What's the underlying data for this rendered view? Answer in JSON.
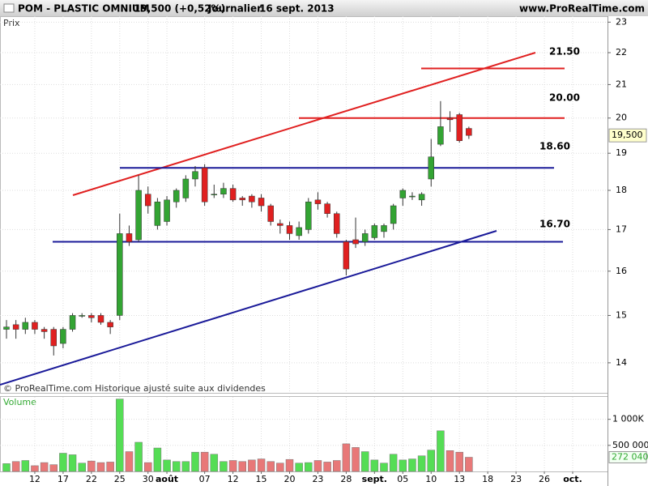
{
  "header": {
    "symbol": "POM - PLASTIC OMNIUM",
    "quote": "19,500 (+0,52%)",
    "period": "Journalier",
    "date": "16 sept. 2013",
    "site": "www.ProRealTime.com"
  },
  "chart_data": [
    {
      "type": "candlestick",
      "axis_label": "Prix",
      "footnote": "© ProRealTime.com Historique ajusté suite aux dividendes",
      "log_scale": true,
      "grid": true,
      "up_color": "#33a433",
      "down_color": "#e02020",
      "categories": [
        null,
        null,
        null,
        "12",
        null,
        null,
        "17",
        null,
        null,
        "22",
        null,
        null,
        "25",
        null,
        null,
        "30",
        null,
        "août",
        null,
        null,
        null,
        "07",
        null,
        null,
        "12",
        null,
        null,
        "15",
        null,
        null,
        "20",
        null,
        null,
        "23",
        null,
        null,
        "28",
        null,
        null,
        "sept.",
        null,
        null,
        "05",
        null,
        null,
        "10",
        null,
        null,
        "13",
        null,
        null,
        "18",
        null,
        null,
        "23",
        null,
        null,
        "26",
        null,
        null,
        "oct."
      ],
      "open": [
        14.7,
        14.8,
        14.7,
        14.85,
        14.7,
        14.7,
        14.4,
        14.7,
        15.0,
        15.0,
        15.0,
        14.85,
        15.0,
        16.9,
        16.75,
        17.9,
        17.1,
        17.2,
        17.7,
        17.8,
        18.3,
        18.6,
        17.9,
        17.9,
        18.05,
        17.8,
        17.85,
        17.8,
        17.6,
        17.15,
        17.1,
        16.85,
        17.0,
        17.75,
        17.65,
        17.4,
        16.7,
        16.75,
        16.7,
        16.8,
        16.95,
        17.15,
        17.8,
        17.85,
        17.75,
        18.3,
        19.25,
        20.0,
        20.1,
        19.7,
        null,
        null,
        null,
        null,
        null,
        null,
        null,
        null,
        null,
        null,
        null
      ],
      "high": [
        14.9,
        14.9,
        14.95,
        14.9,
        14.75,
        14.75,
        14.75,
        15.05,
        15.05,
        15.05,
        15.05,
        14.9,
        17.4,
        17.1,
        18.4,
        18.1,
        17.8,
        17.85,
        18.05,
        18.4,
        18.65,
        18.7,
        18.15,
        18.2,
        18.15,
        17.85,
        17.9,
        17.9,
        17.65,
        17.25,
        17.2,
        17.2,
        17.8,
        17.95,
        17.7,
        17.45,
        16.75,
        17.3,
        17.0,
        17.15,
        17.15,
        17.65,
        18.05,
        17.95,
        17.95,
        19.4,
        20.5,
        20.2,
        20.15,
        19.75,
        null,
        null,
        null,
        null,
        null,
        null,
        null,
        null,
        null,
        null,
        null
      ],
      "low": [
        14.5,
        14.5,
        14.6,
        14.6,
        14.5,
        14.15,
        14.3,
        14.65,
        14.95,
        14.85,
        14.8,
        14.6,
        14.9,
        16.6,
        16.7,
        17.4,
        17.0,
        17.1,
        17.55,
        17.7,
        18.1,
        17.6,
        17.8,
        17.8,
        17.7,
        17.6,
        17.55,
        17.45,
        17.1,
        16.9,
        16.75,
        16.75,
        16.9,
        17.5,
        17.3,
        16.8,
        15.9,
        16.55,
        16.6,
        16.75,
        16.8,
        17.0,
        17.6,
        17.75,
        17.6,
        18.1,
        19.2,
        19.6,
        19.3,
        19.4,
        null,
        null,
        null,
        null,
        null,
        null,
        null,
        null,
        null,
        null,
        null
      ],
      "close": [
        14.75,
        14.7,
        14.85,
        14.7,
        14.65,
        14.35,
        14.7,
        15.0,
        15.0,
        14.95,
        14.85,
        14.75,
        16.9,
        16.7,
        18.0,
        17.6,
        17.7,
        17.75,
        18.0,
        18.3,
        18.5,
        17.7,
        17.9,
        18.05,
        17.75,
        17.75,
        17.7,
        17.6,
        17.2,
        17.1,
        16.9,
        17.05,
        17.7,
        17.65,
        17.4,
        16.9,
        16.05,
        16.65,
        16.9,
        17.1,
        17.1,
        17.6,
        18.0,
        17.85,
        17.9,
        18.9,
        19.75,
        19.95,
        19.35,
        19.5,
        null,
        null,
        null,
        null,
        null,
        null,
        null,
        null,
        null,
        null,
        null
      ],
      "ylim": [
        13.4,
        23.2
      ],
      "yticks": [
        14,
        15,
        16,
        17,
        18,
        19,
        20,
        21,
        22,
        23
      ],
      "last_price": {
        "value": 19.5,
        "label": "19,500"
      },
      "levels": [
        {
          "label": "21.50",
          "value": 21.5,
          "color": "#e02020"
        },
        {
          "label": "20.00",
          "value": 20.0,
          "color": "#e02020"
        },
        {
          "label": "18.60",
          "value": 18.6,
          "color": "#1a1a99"
        },
        {
          "label": "16.70",
          "value": 16.7,
          "color": "#1a1a99"
        }
      ]
    },
    {
      "type": "volume",
      "axis_label": "Volume",
      "up_color": "#55dd55",
      "down_color": "#e87878",
      "values": [
        150000,
        190000,
        210000,
        110000,
        170000,
        130000,
        350000,
        320000,
        160000,
        200000,
        170000,
        180000,
        1390000,
        380000,
        560000,
        170000,
        450000,
        220000,
        190000,
        190000,
        370000,
        370000,
        330000,
        190000,
        210000,
        190000,
        220000,
        240000,
        190000,
        160000,
        230000,
        160000,
        170000,
        210000,
        180000,
        210000,
        530000,
        460000,
        380000,
        220000,
        160000,
        330000,
        220000,
        240000,
        300000,
        410000,
        780000,
        400000,
        370000,
        272040,
        null,
        null,
        null,
        null,
        null,
        null,
        null,
        null,
        null,
        null,
        null
      ],
      "ylim": [
        0,
        1430000
      ],
      "yticks": [
        {
          "value": 500000,
          "label": "500 000"
        },
        {
          "value": 1000000,
          "label": "1 000K"
        }
      ],
      "last_value": {
        "value": 272040,
        "label": "272 040"
      }
    }
  ]
}
